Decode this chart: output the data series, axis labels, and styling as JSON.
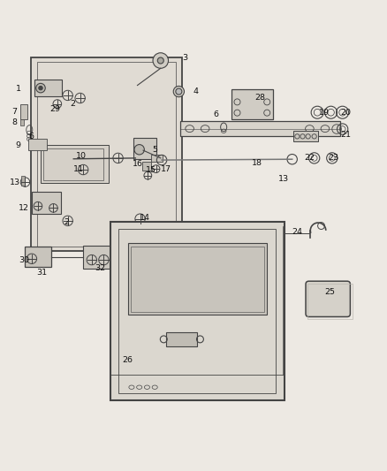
{
  "bg_color": "#ede9e3",
  "line_color": "#444444",
  "label_color": "#111111",
  "figsize": [
    4.38,
    5.33
  ],
  "dpi": 100
}
